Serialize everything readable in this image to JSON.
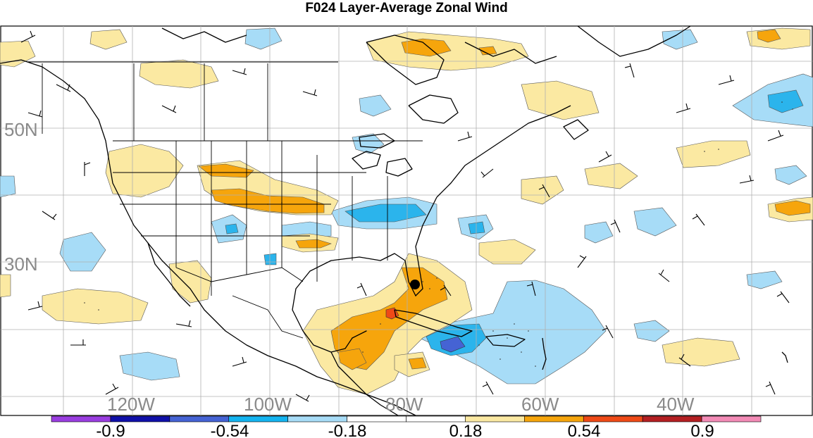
{
  "title": "F024 Layer-Average Zonal Wind",
  "map": {
    "lat_labels": [
      "50N",
      "30N"
    ],
    "lon_labels": [
      "120W",
      "100W",
      "80W",
      "60W",
      "40W"
    ],
    "grid": true,
    "storm_marker": true,
    "colors": {
      "land_outline": "#000000",
      "grid": "#b0b0b0",
      "light_blue": "#9ed6f5",
      "blue": "#2bb4ec",
      "dark_blue": "#5050c8",
      "yellow": "#fbe9a2",
      "orange": "#f4a20a",
      "red": "#e8401c"
    }
  },
  "colorbar": {
    "colors": [
      "#9a3ee0",
      "#1010a8",
      "#4563d4",
      "#14b4f0",
      "#a7dcf7",
      "#ffffff",
      "#ffffff",
      "#fbe9a2",
      "#f6a50c",
      "#ef4a17",
      "#b41f22",
      "#f38bb6"
    ],
    "labels": [
      "-0.9",
      "-0.54",
      "-0.18",
      "0.18",
      "0.54",
      "0.9"
    ]
  }
}
